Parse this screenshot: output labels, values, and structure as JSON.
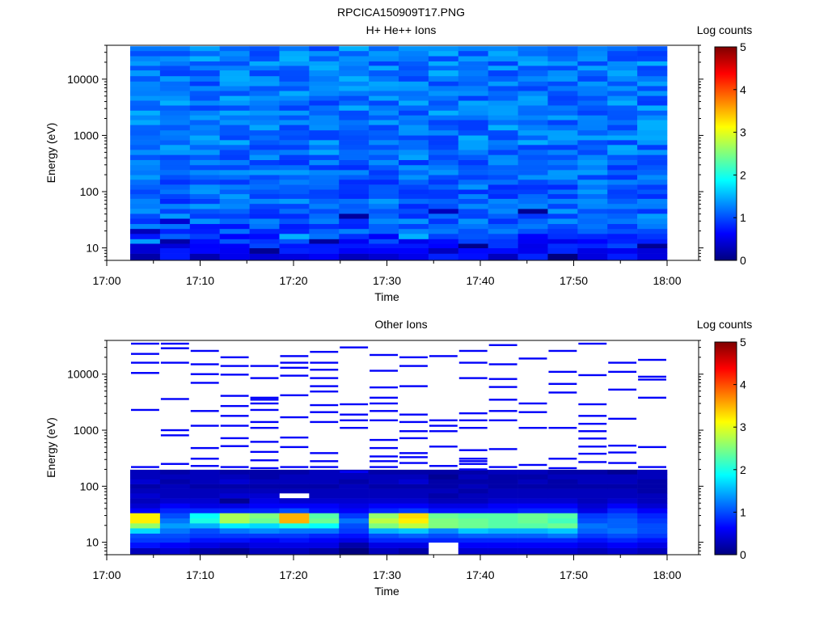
{
  "figure_title": "RPCICA150909T17.PNG",
  "colormap": [
    "#00007f",
    "#0000ff",
    "#007fff",
    "#00ffff",
    "#7fff7f",
    "#ffff00",
    "#ff7f00",
    "#ff0000",
    "#7f0000"
  ],
  "chart_data": [
    {
      "type": "heatmap",
      "title": "H+ He++ Ions",
      "xlabel": "Time",
      "ylabel": "Energy (eV)",
      "x_ticks": [
        "17:00",
        "17:10",
        "17:20",
        "17:30",
        "17:40",
        "17:50",
        "18:00"
      ],
      "x_range": [
        "17:00",
        "18:00"
      ],
      "y_ticks": [
        "10",
        "100",
        "1000",
        "10000"
      ],
      "y_scale": "log",
      "y_range": [
        6,
        40000
      ],
      "colorbar_label": "Log counts",
      "colorbar_ticks": [
        "0",
        "1",
        "2",
        "3",
        "4",
        "5"
      ],
      "z_range": [
        0,
        5
      ],
      "time_bins": [
        "17:02",
        "17:05",
        "17:09",
        "17:12",
        "17:15",
        "17:18",
        "17:22",
        "17:25",
        "17:28",
        "17:31",
        "17:34",
        "17:38",
        "17:41",
        "17:44",
        "17:47",
        "17:51",
        "17:54",
        "17:57"
      ],
      "energy_bins": [
        7,
        9,
        11,
        13,
        16,
        20,
        24,
        30,
        37,
        45,
        55,
        68,
        83,
        100,
        120,
        150,
        180,
        220,
        270,
        330,
        410,
        500,
        620,
        750,
        920,
        1100,
        1400,
        1700,
        2100,
        2500,
        3100,
        3800,
        4600,
        5600,
        6900,
        8400,
        10000,
        13000,
        16000,
        19000,
        23000,
        29000,
        35000
      ],
      "baseline": [
        0.5,
        0.6,
        0.7,
        0.8,
        0.9,
        1.0,
        1.0,
        1.1,
        1.1,
        1.1,
        1.1,
        1.1,
        1.1,
        1.1,
        1.1,
        1.1,
        1.1,
        1.1,
        1.1,
        1.1,
        1.2,
        1.2,
        1.2,
        1.2,
        1.2,
        1.2,
        1.2,
        1.2,
        1.2,
        1.2,
        1.2,
        1.2,
        1.2,
        1.2,
        1.2,
        1.2,
        1.2,
        1.2,
        1.2,
        1.2,
        1.2,
        1.2,
        1.2
      ],
      "variation": 0.3,
      "overrides": [
        {
          "t": 0,
          "e": 3,
          "z": 1.4
        },
        {
          "t": 0,
          "e": 5,
          "z": 0.3
        },
        {
          "t": 1,
          "e": 3,
          "z": 0.2
        },
        {
          "t": 1,
          "e": 7,
          "z": 0.4
        },
        {
          "t": 4,
          "e": 1,
          "z": 0.1
        },
        {
          "t": 5,
          "e": 4,
          "z": 1.5
        },
        {
          "t": 6,
          "e": 3,
          "z": 0.15
        },
        {
          "t": 7,
          "e": 8,
          "z": 0.15
        },
        {
          "t": 9,
          "e": 4,
          "z": 1.5
        },
        {
          "t": 10,
          "e": 9,
          "z": 0.3
        },
        {
          "t": 11,
          "e": 2,
          "z": 0.05
        },
        {
          "t": 13,
          "e": 9,
          "z": 0.1
        },
        {
          "t": 14,
          "e": 0,
          "z": 0.0
        },
        {
          "t": 17,
          "e": 2,
          "z": 0.1
        }
      ]
    },
    {
      "type": "heatmap",
      "title": "Other Ions",
      "xlabel": "Time",
      "ylabel": "Energy (eV)",
      "x_ticks": [
        "17:00",
        "17:10",
        "17:20",
        "17:30",
        "17:40",
        "17:50",
        "18:00"
      ],
      "x_range": [
        "17:00",
        "18:00"
      ],
      "y_ticks": [
        "10",
        "100",
        "1000",
        "10000"
      ],
      "y_scale": "log",
      "y_range": [
        6,
        40000
      ],
      "colorbar_label": "Log counts",
      "colorbar_ticks": [
        "0",
        "1",
        "2",
        "3",
        "4",
        "5"
      ],
      "z_range": [
        0,
        5
      ],
      "time_bins": [
        "17:02",
        "17:05",
        "17:09",
        "17:12",
        "17:15",
        "17:18",
        "17:22",
        "17:25",
        "17:28",
        "17:31",
        "17:34",
        "17:38",
        "17:41",
        "17:44",
        "17:47",
        "17:51",
        "17:54",
        "17:57"
      ],
      "energy_bins": [
        7,
        9,
        11,
        13,
        16,
        20,
        24,
        30,
        37,
        45,
        55,
        68,
        83,
        100,
        120,
        150,
        180
      ],
      "columns": [
        [
          0.3,
          0.7,
          0.9,
          1.0,
          1.7,
          2.6,
          3.2,
          3.2,
          0.6,
          0.4,
          0.3,
          0.4,
          0.3,
          0.2,
          0.4,
          0.3,
          0.3
        ],
        [
          0.4,
          0.6,
          0.9,
          1.0,
          1.2,
          1.4,
          1.2,
          1.0,
          0.8,
          0.6,
          0.4,
          0.3,
          0.3,
          0.3,
          0.2,
          0.3,
          0.2
        ],
        [
          0.2,
          0.5,
          0.7,
          0.9,
          1.0,
          1.5,
          2.0,
          1.9,
          0.8,
          0.5,
          0.4,
          0.3,
          0.3,
          0.2,
          0.3,
          0.3,
          0.3
        ],
        [
          0.1,
          0.4,
          0.7,
          0.9,
          1.2,
          1.8,
          2.7,
          2.7,
          0.8,
          0.5,
          0.1,
          0.4,
          0.3,
          0.2,
          0.4,
          0.3,
          0.2
        ],
        [
          0.3,
          0.5,
          0.6,
          0.9,
          1.3,
          1.7,
          2.4,
          2.5,
          0.8,
          0.6,
          0.5,
          0.4,
          0.3,
          0.2,
          0.3,
          0.2,
          0.2
        ],
        [
          0.3,
          0.5,
          0.7,
          0.9,
          1.2,
          2.0,
          3.5,
          3.5,
          1.0,
          0.6,
          0.4,
          -1,
          0.3,
          0.2,
          0.3,
          0.3,
          0.2
        ],
        [
          0.2,
          0.5,
          0.6,
          0.8,
          1.2,
          1.9,
          2.4,
          2.3,
          0.7,
          0.6,
          0.4,
          0.3,
          0.3,
          0.2,
          0.3,
          0.3,
          0.3
        ],
        [
          0.0,
          0.2,
          0.5,
          0.7,
          0.9,
          1.0,
          1.2,
          0.9,
          0.6,
          0.5,
          0.4,
          0.3,
          0.3,
          0.3,
          0.2,
          0.3,
          0.3
        ],
        [
          0.3,
          0.5,
          0.8,
          1.0,
          1.5,
          2.5,
          2.8,
          2.6,
          0.8,
          0.6,
          0.4,
          0.3,
          0.3,
          0.2,
          0.3,
          0.3,
          0.2
        ],
        [
          0.2,
          0.5,
          0.8,
          1.1,
          1.6,
          2.8,
          3.2,
          3.3,
          0.9,
          0.6,
          0.4,
          0.3,
          0.3,
          0.2,
          0.4,
          0.3,
          0.2
        ],
        [
          -1,
          -1,
          0.8,
          1.0,
          1.3,
          2.5,
          2.5,
          2.4,
          0.7,
          0.5,
          0.3,
          0.2,
          0.3,
          0.2,
          0.2,
          0.1,
          0.2
        ],
        [
          0.4,
          0.6,
          0.8,
          1.1,
          1.6,
          2.4,
          2.4,
          2.3,
          0.7,
          0.5,
          0.3,
          0.3,
          0.2,
          0.3,
          0.2,
          0.3,
          0.2
        ],
        [
          0.4,
          0.6,
          0.8,
          1.1,
          1.5,
          2.3,
          2.3,
          2.3,
          0.7,
          0.6,
          0.4,
          0.3,
          0.3,
          0.2,
          0.2,
          0.2,
          0.3
        ],
        [
          0.4,
          0.6,
          0.8,
          1.1,
          1.5,
          2.3,
          2.4,
          2.4,
          0.8,
          0.6,
          0.4,
          0.3,
          0.3,
          0.2,
          0.3,
          0.2,
          0.3
        ],
        [
          0.4,
          0.6,
          0.8,
          1.2,
          1.6,
          2.4,
          2.2,
          2.3,
          0.8,
          0.6,
          0.4,
          0.3,
          0.3,
          0.2,
          0.2,
          0.3,
          0.2
        ],
        [
          0.3,
          0.5,
          0.7,
          0.9,
          1.1,
          1.2,
          1.0,
          0.9,
          0.5,
          0.4,
          0.3,
          0.3,
          0.3,
          0.2,
          0.3,
          0.3,
          0.2
        ],
        [
          0.4,
          0.6,
          0.8,
          1.0,
          1.2,
          1.1,
          1.1,
          1.0,
          0.8,
          0.6,
          0.4,
          0.3,
          0.3,
          0.2,
          0.3,
          0.3,
          0.1
        ],
        [
          0.3,
          0.5,
          0.7,
          0.9,
          1.0,
          1.0,
          0.9,
          0.8,
          0.6,
          0.4,
          0.3,
          0.3,
          0.2,
          0.2,
          0.2,
          0.3,
          0.3
        ]
      ],
      "sparse_levels": [
        [
          220,
          2300,
          10500,
          16000,
          23000,
          35000
        ],
        [
          250,
          810,
          1000,
          3600,
          16000,
          29000,
          35000
        ],
        [
          230,
          310,
          480,
          1200,
          2200,
          7000,
          10000,
          15000,
          26000
        ],
        [
          220,
          520,
          720,
          1200,
          1800,
          2700,
          4100,
          9800,
          14000,
          20000
        ],
        [
          210,
          290,
          410,
          620,
          1100,
          1400,
          2300,
          3000,
          3500,
          3800,
          8500,
          14000
        ],
        [
          220,
          500,
          740,
          1700,
          4200,
          9400,
          13000,
          16000,
          21000
        ],
        [
          220,
          280,
          390,
          1400,
          2100,
          2800,
          4900,
          6100,
          8500,
          12000,
          16000,
          25000
        ],
        [
          180,
          1100,
          1500,
          1900,
          2900,
          30000
        ],
        [
          220,
          280,
          340,
          480,
          670,
          1500,
          2200,
          3000,
          3800,
          5800,
          11500,
          22000
        ],
        [
          260,
          330,
          390,
          720,
          960,
          1400,
          1900,
          6100,
          14000,
          20000
        ],
        [
          230,
          510,
          960,
          1200,
          1500,
          21000
        ],
        [
          200,
          250,
          280,
          310,
          440,
          1100,
          1500,
          2000,
          8500,
          16000,
          26000
        ],
        [
          220,
          460,
          1500,
          2200,
          3500,
          5900,
          8200,
          15000,
          33000
        ],
        [
          240,
          1100,
          2100,
          3000,
          19000
        ],
        [
          210,
          310,
          1100,
          4700,
          6700,
          11000,
          26000
        ],
        [
          270,
          380,
          510,
          710,
          960,
          1300,
          1800,
          2900,
          9600,
          35000
        ],
        [
          260,
          400,
          530,
          1600,
          5300,
          11000,
          16000
        ],
        [
          220,
          500,
          3800,
          8000,
          9000,
          18000
        ]
      ]
    }
  ]
}
